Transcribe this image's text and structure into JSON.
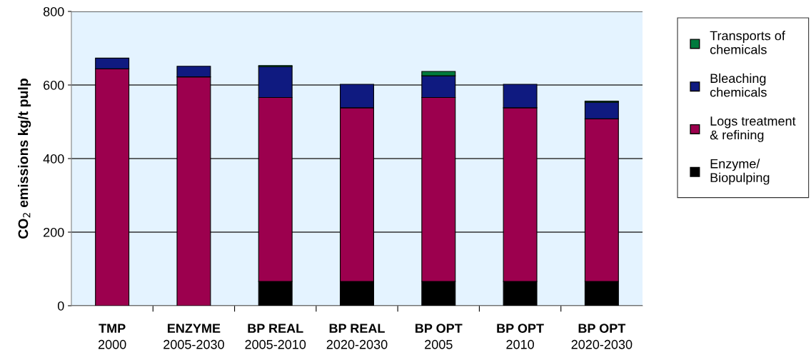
{
  "chart_data": {
    "type": "bar",
    "stacked": true,
    "ylabel": "CO$_{2}$ emissions kg/t pulp",
    "categories": [
      "TMP\n2000",
      "ENZYME\n2005-2030",
      "BP REAL\n2005-2010",
      "BP REAL\n2020-2030",
      "BP OPT\n2005",
      "BP OPT\n2010",
      "BP OPT\n2020-2030"
    ],
    "series": [
      {
        "name": "Enzyme/\nBiopulping",
        "color": "#000000",
        "values": [
          null,
          null,
          66,
          66,
          66,
          66,
          66
        ]
      },
      {
        "name": "Logs treatment\n& refining",
        "color": "#9c004e",
        "values": [
          644,
          622,
          500,
          472,
          500,
          472,
          442
        ]
      },
      {
        "name": "Bleaching\nchemicals",
        "color": "#0f1a80",
        "values": [
          29,
          29,
          84,
          64,
          59,
          64,
          45
        ]
      },
      {
        "name": "Transports of\nchemicals",
        "color": "#007a3d",
        "values": [
          null,
          null,
          3,
          null,
          12,
          null,
          3
        ]
      }
    ],
    "ylim": [
      0,
      800
    ],
    "yticks": [
      0,
      200,
      400,
      600,
      800
    ],
    "grid": "y",
    "legend": "right"
  }
}
